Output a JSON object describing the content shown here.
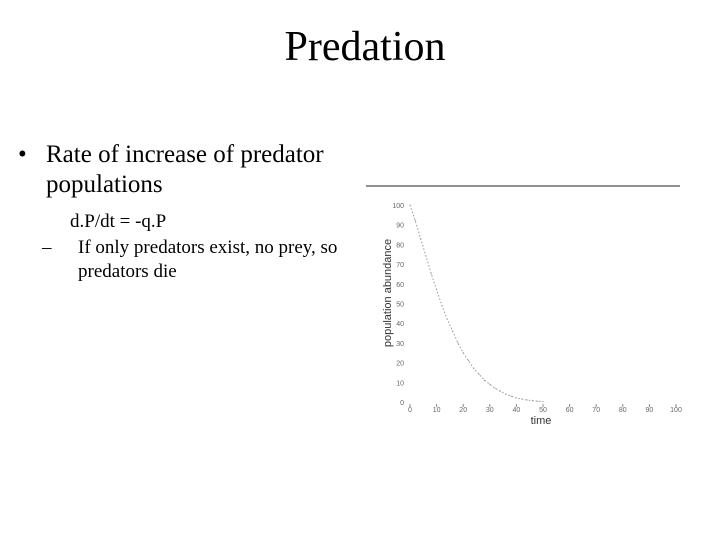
{
  "slide": {
    "title": "Predation",
    "bullet_1": "Rate of increase of predator populations",
    "equation": "d.P/dt = -q.P",
    "bullet_2": "If only predators exist, no prey, so predators die",
    "bullet_mark": "•",
    "dash_mark": "–"
  },
  "chart_data": {
    "type": "line",
    "title": "",
    "xlabel": "time",
    "ylabel": "population abundance",
    "xlim": [
      0,
      100
    ],
    "ylim": [
      0,
      100
    ],
    "xticks": [
      0,
      10,
      20,
      30,
      40,
      50,
      60,
      70,
      80,
      90,
      100
    ],
    "yticks": [
      0,
      10,
      20,
      30,
      40,
      50,
      60,
      70,
      80,
      90,
      100
    ],
    "grid": false,
    "series": [
      {
        "x": [
          0,
          2,
          4,
          6,
          8,
          10,
          12,
          14,
          16,
          18,
          20,
          22,
          24,
          26,
          28,
          30,
          32,
          34,
          36,
          38,
          40,
          42,
          44,
          46,
          48,
          50
        ],
        "values": [
          100,
          92,
          83,
          74,
          65,
          57,
          49,
          42,
          36,
          30,
          25,
          21,
          17,
          14,
          11,
          9,
          7,
          5.5,
          4,
          3,
          2,
          1.5,
          1,
          0.7,
          0.4,
          0.2
        ],
        "color": "#999999"
      }
    ]
  }
}
